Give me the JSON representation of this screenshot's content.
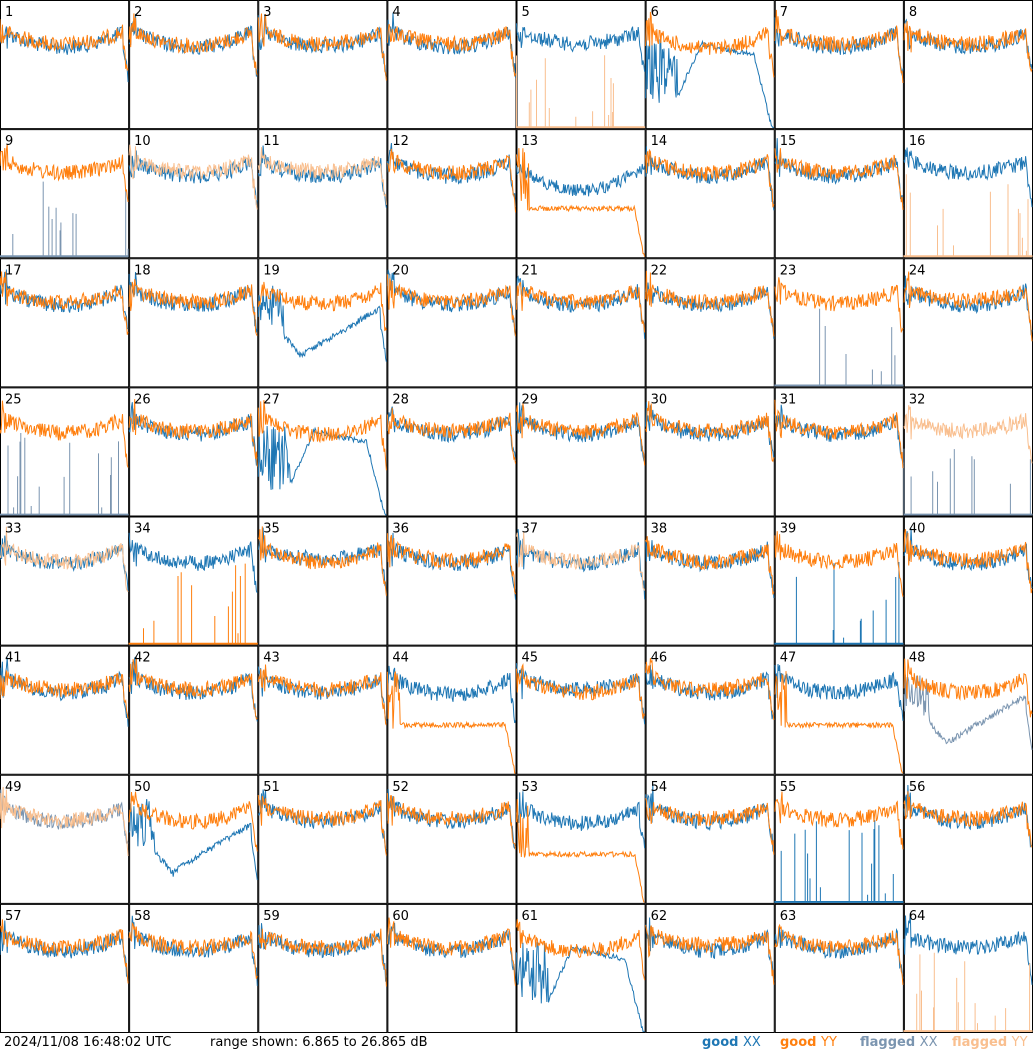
{
  "chart_data": {
    "type": "line",
    "title": "",
    "timestamp": "2024/11/08 16:48:02 UTC",
    "range_text": "range shown: 6.865 to 26.865 dB",
    "ylim": [
      6.865,
      26.865
    ],
    "grid_rows": 8,
    "grid_cols": 8,
    "legend": [
      {
        "label_a": "good ",
        "label_b": "XX",
        "color": "#1f77b4"
      },
      {
        "label_a": "good ",
        "label_b": "YY",
        "color": "#ff7f0e"
      },
      {
        "label_a": "flagged ",
        "label_b": "XX",
        "color": "#7b95b0"
      },
      {
        "label_a": "flagged ",
        "label_b": "YY",
        "color": "#f9bf8f"
      }
    ],
    "colors": {
      "good_xx": "#1f77b4",
      "good_yy": "#ff7f0e",
      "flagged_xx": "#7b95b0",
      "flagged_yy": "#f9bf8f"
    },
    "panel_labels": [
      "1",
      "2",
      "3",
      "4",
      "5",
      "6",
      "7",
      "8",
      "9",
      "10",
      "11",
      "12",
      "13",
      "14",
      "15",
      "16",
      "17",
      "18",
      "19",
      "20",
      "21",
      "22",
      "23",
      "24",
      "25",
      "26",
      "27",
      "28",
      "29",
      "30",
      "31",
      "32",
      "33",
      "34",
      "35",
      "36",
      "37",
      "38",
      "39",
      "40",
      "41",
      "42",
      "43",
      "44",
      "45",
      "46",
      "47",
      "48",
      "49",
      "50",
      "51",
      "52",
      "53",
      "54",
      "55",
      "56",
      "57",
      "58",
      "59",
      "60",
      "61",
      "62",
      "63",
      "64"
    ],
    "panels": [
      {
        "id": 1,
        "xx": [
          "bowl",
          0.55
        ],
        "yy": [
          "bowl",
          0.45
        ],
        "xxf": false,
        "yyf": false
      },
      {
        "id": 2,
        "xx": [
          "bowl",
          0.55
        ],
        "yy": [
          "bowl",
          0.5
        ],
        "xxf": false,
        "yyf": false
      },
      {
        "id": 3,
        "xx": [
          "bowl",
          0.55
        ],
        "yy": [
          "bowl",
          0.45
        ],
        "xxf": false,
        "yyf": false
      },
      {
        "id": 4,
        "xx": [
          "bowl",
          0.55
        ],
        "yy": [
          "bowl",
          0.45
        ],
        "xxf": false,
        "yyf": false
      },
      {
        "id": 5,
        "xx": [
          "bowl",
          0.45
        ],
        "yy": [
          "spikes",
          0
        ],
        "xxf": false,
        "yyf": true
      },
      {
        "id": 6,
        "xx": [
          "dipdrop",
          0
        ],
        "yy": [
          "bowl",
          0.6
        ],
        "xxf": false,
        "yyf": false
      },
      {
        "id": 7,
        "xx": [
          "bowl",
          0.55
        ],
        "yy": [
          "bowl",
          0.45
        ],
        "xxf": false,
        "yyf": false
      },
      {
        "id": 8,
        "xx": [
          "bowl",
          0.55
        ],
        "yy": [
          "bowl",
          0.45
        ],
        "xxf": false,
        "yyf": false
      },
      {
        "id": 9,
        "xx": [
          "spikes",
          0
        ],
        "yy": [
          "bowl",
          0.45
        ],
        "xxf": true,
        "yyf": false
      },
      {
        "id": 10,
        "xx": [
          "bowl",
          0.55
        ],
        "yy": [
          "bowl",
          0.4
        ],
        "xxf": false,
        "yyf": true
      },
      {
        "id": 11,
        "xx": [
          "bowl",
          0.55
        ],
        "yy": [
          "bowl",
          0.4
        ],
        "xxf": false,
        "yyf": true
      },
      {
        "id": 12,
        "xx": [
          "bowl",
          0.55
        ],
        "yy": [
          "bowl",
          0.45
        ],
        "xxf": false,
        "yyf": false
      },
      {
        "id": 13,
        "xx": [
          "plateau",
          0.5
        ],
        "yy": [
          "plateaudrop",
          0
        ],
        "xxf": false,
        "yyf": false
      },
      {
        "id": 14,
        "xx": [
          "bowl",
          0.55
        ],
        "yy": [
          "bowl",
          0.45
        ],
        "xxf": false,
        "yyf": false
      },
      {
        "id": 15,
        "xx": [
          "bowl",
          0.55
        ],
        "yy": [
          "bowl",
          0.45
        ],
        "xxf": false,
        "yyf": false
      },
      {
        "id": 16,
        "xx": [
          "bowl",
          0.45
        ],
        "yy": [
          "spikes",
          0
        ],
        "xxf": false,
        "yyf": true
      },
      {
        "id": 17,
        "xx": [
          "bowl",
          0.55
        ],
        "yy": [
          "bowl",
          0.45
        ],
        "xxf": false,
        "yyf": false
      },
      {
        "id": 18,
        "xx": [
          "bowl",
          0.55
        ],
        "yy": [
          "bowl",
          0.45
        ],
        "xxf": false,
        "yyf": false
      },
      {
        "id": 19,
        "xx": [
          "dipslope",
          0
        ],
        "yy": [
          "bowl",
          0.5
        ],
        "xxf": false,
        "yyf": false
      },
      {
        "id": 20,
        "xx": [
          "bowl",
          0.55
        ],
        "yy": [
          "bowl",
          0.45
        ],
        "xxf": false,
        "yyf": false
      },
      {
        "id": 21,
        "xx": [
          "bowl",
          0.55
        ],
        "yy": [
          "bowl",
          0.45
        ],
        "xxf": false,
        "yyf": false
      },
      {
        "id": 22,
        "xx": [
          "bowl",
          0.55
        ],
        "yy": [
          "bowl",
          0.45
        ],
        "xxf": false,
        "yyf": false
      },
      {
        "id": 23,
        "xx": [
          "spikes",
          0
        ],
        "yy": [
          "bowl",
          0.5
        ],
        "xxf": true,
        "yyf": false
      },
      {
        "id": 24,
        "xx": [
          "bowl",
          0.55
        ],
        "yy": [
          "bowl",
          0.4
        ],
        "xxf": false,
        "yyf": false
      },
      {
        "id": 25,
        "xx": [
          "spikes",
          0
        ],
        "yy": [
          "bowl",
          0.5
        ],
        "xxf": true,
        "yyf": false
      },
      {
        "id": 26,
        "xx": [
          "bowl",
          0.55
        ],
        "yy": [
          "bowl",
          0.45
        ],
        "xxf": false,
        "yyf": false
      },
      {
        "id": 27,
        "xx": [
          "dipdrop",
          0
        ],
        "yy": [
          "bowl",
          0.55
        ],
        "xxf": false,
        "yyf": false
      },
      {
        "id": 28,
        "xx": [
          "bowl",
          0.55
        ],
        "yy": [
          "bowl",
          0.45
        ],
        "xxf": false,
        "yyf": false
      },
      {
        "id": 29,
        "xx": [
          "bowl",
          0.55
        ],
        "yy": [
          "bowl",
          0.45
        ],
        "xxf": false,
        "yyf": false
      },
      {
        "id": 30,
        "xx": [
          "bowl",
          0.55
        ],
        "yy": [
          "bowl",
          0.45
        ],
        "xxf": false,
        "yyf": false
      },
      {
        "id": 31,
        "xx": [
          "bowl",
          0.55
        ],
        "yy": [
          "bowl",
          0.5
        ],
        "xxf": false,
        "yyf": false
      },
      {
        "id": 32,
        "xx": [
          "spikes",
          0
        ],
        "yy": [
          "bowl",
          0.45
        ],
        "xxf": true,
        "yyf": true
      },
      {
        "id": 33,
        "xx": [
          "bowl",
          0.55
        ],
        "yy": [
          "bowl",
          0.5
        ],
        "xxf": false,
        "yyf": true
      },
      {
        "id": 34,
        "xx": [
          "bowl",
          0.55
        ],
        "yy": [
          "spikes",
          0
        ],
        "xxf": false,
        "yyf": false
      },
      {
        "id": 35,
        "xx": [
          "bowl",
          0.4
        ],
        "yy": [
          "bowl",
          0.5
        ],
        "xxf": false,
        "yyf": false
      },
      {
        "id": 36,
        "xx": [
          "bowl",
          0.55
        ],
        "yy": [
          "bowl",
          0.45
        ],
        "xxf": false,
        "yyf": false
      },
      {
        "id": 37,
        "xx": [
          "bowl",
          0.55
        ],
        "yy": [
          "bowl",
          0.5
        ],
        "xxf": false,
        "yyf": true
      },
      {
        "id": 38,
        "xx": [
          "bowl",
          0.55
        ],
        "yy": [
          "bowl",
          0.5
        ],
        "xxf": false,
        "yyf": false
      },
      {
        "id": 39,
        "xx": [
          "spikes",
          0
        ],
        "yy": [
          "bowl",
          0.5
        ],
        "xxf": false,
        "yyf": false
      },
      {
        "id": 40,
        "xx": [
          "bowl",
          0.55
        ],
        "yy": [
          "bowl",
          0.45
        ],
        "xxf": false,
        "yyf": false
      },
      {
        "id": 41,
        "xx": [
          "bowl",
          0.55
        ],
        "yy": [
          "bowl",
          0.45
        ],
        "xxf": false,
        "yyf": false
      },
      {
        "id": 42,
        "xx": [
          "bowl",
          0.55
        ],
        "yy": [
          "bowl",
          0.45
        ],
        "xxf": false,
        "yyf": false
      },
      {
        "id": 43,
        "xx": [
          "bowl",
          0.55
        ],
        "yy": [
          "bowl",
          0.45
        ],
        "xxf": false,
        "yyf": false
      },
      {
        "id": 44,
        "xx": [
          "bowl",
          0.6
        ],
        "yy": [
          "plateaudrop",
          0
        ],
        "xxf": false,
        "yyf": false
      },
      {
        "id": 45,
        "xx": [
          "bowl",
          0.45
        ],
        "yy": [
          "bowl",
          0.55
        ],
        "xxf": false,
        "yyf": false
      },
      {
        "id": 46,
        "xx": [
          "bowl",
          0.55
        ],
        "yy": [
          "bowl",
          0.45
        ],
        "xxf": false,
        "yyf": false
      },
      {
        "id": 47,
        "xx": [
          "bowl",
          0.55
        ],
        "yy": [
          "plateaudrop",
          0
        ],
        "xxf": false,
        "yyf": false
      },
      {
        "id": 48,
        "xx": [
          "dipslope",
          0
        ],
        "yy": [
          "bowl",
          0.55
        ],
        "xxf": true,
        "yyf": false
      },
      {
        "id": 49,
        "xx": [
          "bowl",
          0.55
        ],
        "yy": [
          "bowl",
          0.5
        ],
        "xxf": true,
        "yyf": true
      },
      {
        "id": 50,
        "xx": [
          "dipslope",
          0
        ],
        "yy": [
          "bowl",
          0.55
        ],
        "xxf": false,
        "yyf": false
      },
      {
        "id": 51,
        "xx": [
          "bowl",
          0.55
        ],
        "yy": [
          "bowl",
          0.45
        ],
        "xxf": false,
        "yyf": false
      },
      {
        "id": 52,
        "xx": [
          "bowl",
          0.55
        ],
        "yy": [
          "bowl",
          0.45
        ],
        "xxf": false,
        "yyf": false
      },
      {
        "id": 53,
        "xx": [
          "bowl",
          0.6
        ],
        "yy": [
          "plateaudrop",
          0
        ],
        "xxf": false,
        "yyf": false
      },
      {
        "id": 54,
        "xx": [
          "bowl",
          0.55
        ],
        "yy": [
          "bowl",
          0.45
        ],
        "xxf": false,
        "yyf": false
      },
      {
        "id": 55,
        "xx": [
          "spikes",
          0
        ],
        "yy": [
          "bowl",
          0.5
        ],
        "xxf": false,
        "yyf": false
      },
      {
        "id": 56,
        "xx": [
          "bowl",
          0.55
        ],
        "yy": [
          "bowl",
          0.45
        ],
        "xxf": false,
        "yyf": false
      },
      {
        "id": 57,
        "xx": [
          "bowl",
          0.55
        ],
        "yy": [
          "bowl",
          0.45
        ],
        "xxf": false,
        "yyf": false
      },
      {
        "id": 58,
        "xx": [
          "bowl",
          0.55
        ],
        "yy": [
          "bowl",
          0.45
        ],
        "xxf": false,
        "yyf": false
      },
      {
        "id": 59,
        "xx": [
          "bowl",
          0.55
        ],
        "yy": [
          "bowl",
          0.45
        ],
        "xxf": false,
        "yyf": false
      },
      {
        "id": 60,
        "xx": [
          "bowl",
          0.55
        ],
        "yy": [
          "bowl",
          0.45
        ],
        "xxf": false,
        "yyf": false
      },
      {
        "id": 61,
        "xx": [
          "dipdrop",
          0
        ],
        "yy": [
          "bowl",
          0.55
        ],
        "xxf": false,
        "yyf": false
      },
      {
        "id": 62,
        "xx": [
          "bowl",
          0.55
        ],
        "yy": [
          "bowl",
          0.35
        ],
        "xxf": false,
        "yyf": false
      },
      {
        "id": 63,
        "xx": [
          "bowl",
          0.55
        ],
        "yy": [
          "bowl",
          0.45
        ],
        "xxf": false,
        "yyf": false
      },
      {
        "id": 64,
        "xx": [
          "bowl",
          0.45
        ],
        "yy": [
          "spikes",
          0
        ],
        "xxf": false,
        "yyf": true
      }
    ]
  }
}
